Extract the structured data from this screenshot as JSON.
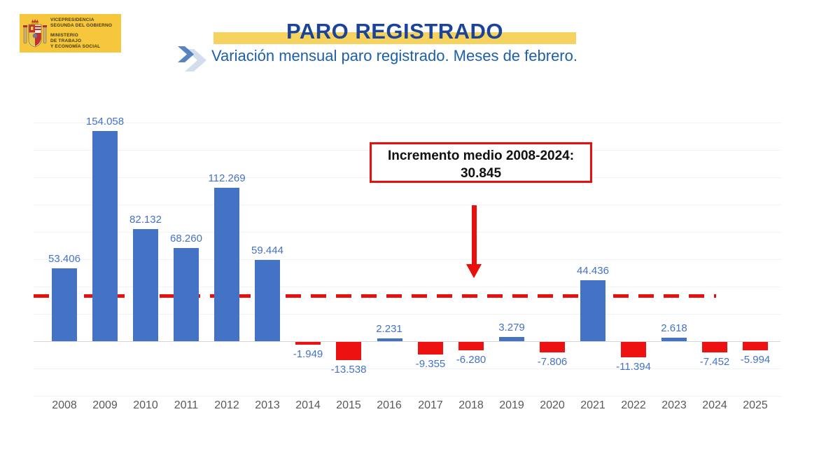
{
  "header": {
    "logo": {
      "lines": [
        "VICEPRESIDENCIA",
        "SEGUNDA DEL GOBIERNO",
        "MINISTERIO",
        "DE TRABAJO",
        "Y ECONOMÍA SOCIAL"
      ],
      "bg_color": "#F6C73C"
    },
    "title": "PARO REGISTRADO",
    "subtitle": "Variación mensual paro registrado. Meses de febrero.",
    "title_color": "#1B4499",
    "subtitle_color": "#1E5FAC",
    "highlight_color": "#F6D25E"
  },
  "chart_data": {
    "type": "bar",
    "title": "Variación mensual paro registrado. Meses de febrero.",
    "categories": [
      "2008",
      "2009",
      "2010",
      "2011",
      "2012",
      "2013",
      "2014",
      "2015",
      "2016",
      "2017",
      "2018",
      "2019",
      "2020",
      "2021",
      "2022",
      "2023",
      "2024",
      "2025"
    ],
    "values": [
      53406,
      154058,
      82132,
      68260,
      112269,
      59444,
      -1949,
      -13538,
      2231,
      -9355,
      -6280,
      3279,
      -7806,
      44436,
      -11394,
      2618,
      -7452,
      -5994
    ],
    "value_labels": [
      "53.406",
      "154.058",
      "82.132",
      "68.260",
      "112.269",
      "59.444",
      "-1.949",
      "-13.538",
      "2.231",
      "-9.355",
      "-6.280",
      "3.279",
      "-7.806",
      "44.436",
      "-11.394",
      "2.618",
      "-7.452",
      "-5.994"
    ],
    "xlabel": "",
    "ylabel": "",
    "ylim": [
      -40000,
      160000
    ],
    "grid_step": 20000,
    "grid_on": true,
    "positive_color": "#4472C4",
    "negative_color": "#EE1111",
    "data_label_color": "#4472C4",
    "axis_label_color": "#595959",
    "average_line": {
      "value": 30845,
      "label": "30.845",
      "color": "#E8100C",
      "style": "dashed"
    },
    "annotation": {
      "line1": "Incremento medio 2008-2024:",
      "line2": "30.845"
    }
  }
}
